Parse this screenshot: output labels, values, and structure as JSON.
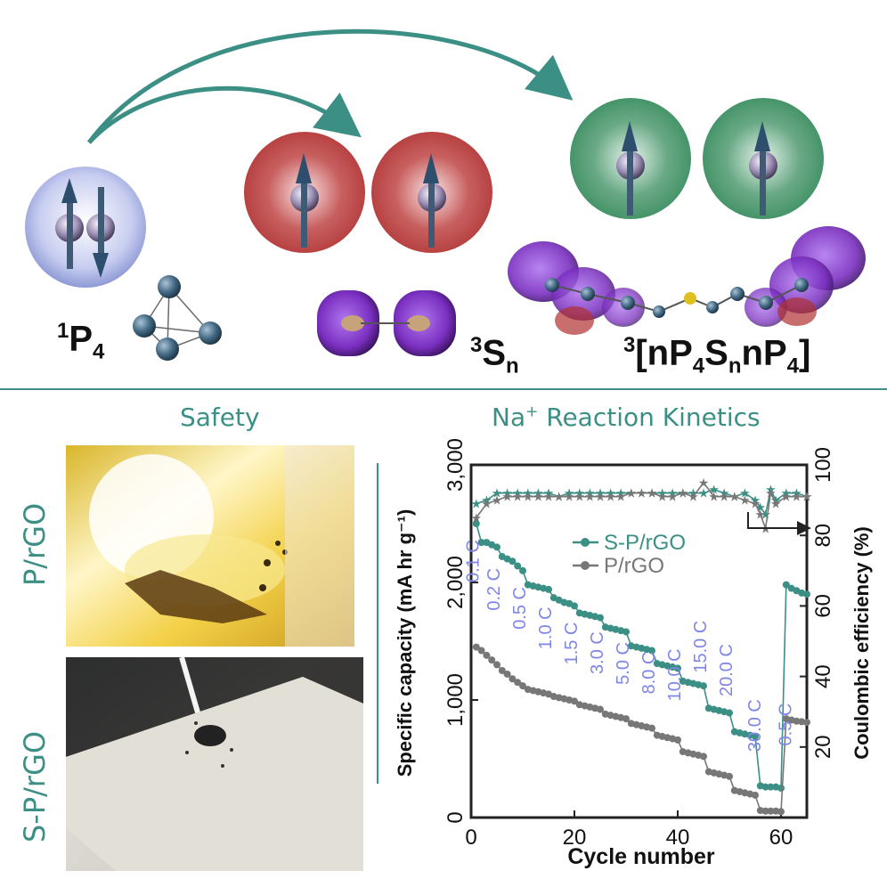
{
  "top": {
    "species_1": {
      "sup": "1",
      "main": "P",
      "sub": "4"
    },
    "species_2": {
      "sup": "3",
      "main": "S",
      "sub": "n"
    },
    "species_3": {
      "sup": "3",
      "pre": "[nP",
      "sub1": "4",
      "mid": "S",
      "sub2": "n",
      "mid2": "nP",
      "sub3": "4",
      "post": "]"
    }
  },
  "sections": {
    "safety": "Safety",
    "kinetics_main": "Na",
    "kinetics_sup": "+",
    "kinetics_rest": " Reaction Kinetics"
  },
  "photos": {
    "top_label": "P/rGO",
    "bottom_label": "S-P/rGO"
  },
  "colors": {
    "teal": "#3b8f84",
    "gray": "#777777",
    "rate_label": "#7f86e6",
    "red_sphere": "#b33a3a",
    "green_sphere": "#3d8f62",
    "blue_sphere": "#8e9ad6",
    "orbital_purple": "#7a2fc0"
  },
  "chart_data": {
    "type": "line",
    "xlabel": "Cycle number",
    "ylabel": "Specific capacity (mA hr g⁻¹)",
    "ylabel_right": "Coulombic efficiency (%)",
    "xlim": [
      0,
      65
    ],
    "ylim": [
      0,
      3000
    ],
    "ylim_right": [
      0,
      100
    ],
    "x_ticks": [
      "0",
      "20",
      "40",
      "60"
    ],
    "y_ticks": [
      "0",
      "1,000",
      "2,000",
      "3,000"
    ],
    "y_ticks_right": [
      "20",
      "40",
      "60",
      "80",
      "100"
    ],
    "legend": [
      "S-P/rGO",
      "P/rGO"
    ],
    "rate_labels": [
      "0.1 C",
      "0.2 C",
      "0.5 C",
      "1.0 C",
      "1.5 C",
      "3.0 C",
      "5.0 C",
      "8.0 C",
      "10.0 C",
      "15.0 C",
      "20.0 C",
      "30.0 C",
      "0.5 C"
    ],
    "series": [
      {
        "name": "S-P/rGO",
        "x": [
          1,
          2,
          3,
          4,
          5,
          6,
          7,
          8,
          9,
          10,
          11,
          12,
          13,
          14,
          15,
          16,
          17,
          18,
          19,
          20,
          21,
          22,
          23,
          24,
          25,
          26,
          27,
          28,
          29,
          30,
          31,
          32,
          33,
          34,
          35,
          36,
          37,
          38,
          39,
          40,
          41,
          42,
          43,
          44,
          45,
          46,
          47,
          48,
          49,
          50,
          51,
          52,
          53,
          54,
          55,
          56,
          57,
          58,
          59,
          60,
          61,
          62,
          63,
          64,
          65
        ],
        "values": [
          2500,
          2340,
          2340,
          2320,
          2300,
          2220,
          2200,
          2180,
          2140,
          2100,
          1980,
          1970,
          1960,
          1950,
          1940,
          1870,
          1850,
          1830,
          1820,
          1800,
          1740,
          1730,
          1720,
          1710,
          1700,
          1620,
          1610,
          1600,
          1590,
          1580,
          1460,
          1450,
          1440,
          1430,
          1420,
          1310,
          1300,
          1290,
          1280,
          1270,
          1160,
          1150,
          1140,
          1130,
          1120,
          930,
          920,
          910,
          900,
          890,
          730,
          720,
          710,
          700,
          690,
          270,
          260,
          260,
          260,
          250,
          1980,
          1950,
          1930,
          1910,
          1900
        ]
      },
      {
        "name": "P/rGO",
        "x": [
          1,
          2,
          3,
          4,
          5,
          6,
          7,
          8,
          9,
          10,
          11,
          12,
          13,
          14,
          15,
          16,
          17,
          18,
          19,
          20,
          21,
          22,
          23,
          24,
          25,
          26,
          27,
          28,
          29,
          30,
          31,
          32,
          33,
          34,
          35,
          36,
          37,
          38,
          39,
          40,
          41,
          42,
          43,
          44,
          45,
          46,
          47,
          48,
          49,
          50,
          51,
          52,
          53,
          54,
          55,
          56,
          57,
          58,
          59,
          60,
          61,
          62,
          63,
          64,
          65
        ],
        "values": [
          1450,
          1420,
          1380,
          1340,
          1300,
          1250,
          1220,
          1180,
          1150,
          1120,
          1090,
          1080,
          1070,
          1060,
          1050,
          1030,
          1020,
          1010,
          1000,
          990,
          960,
          950,
          940,
          930,
          920,
          880,
          870,
          860,
          850,
          840,
          800,
          790,
          780,
          770,
          760,
          700,
          690,
          680,
          670,
          660,
          560,
          550,
          540,
          530,
          520,
          390,
          380,
          370,
          360,
          350,
          230,
          220,
          210,
          200,
          190,
          60,
          55,
          55,
          55,
          50,
          840,
          830,
          820,
          815,
          810
        ]
      },
      {
        "name": "S-P/rGO CE",
        "x": [
          1,
          3,
          5,
          7,
          9,
          11,
          13,
          15,
          17,
          19,
          21,
          23,
          25,
          27,
          29,
          31,
          33,
          35,
          37,
          39,
          41,
          43,
          45,
          47,
          49,
          51,
          53,
          55,
          56,
          57,
          58,
          59,
          61,
          63,
          65
        ],
        "values": [
          89,
          90,
          92,
          92,
          92,
          92,
          92,
          92,
          91,
          92,
          92,
          92,
          92,
          92,
          92,
          92,
          92,
          92,
          92,
          92,
          92,
          92,
          92,
          93,
          92,
          91,
          92,
          90,
          88,
          86,
          93,
          90,
          92,
          92,
          91
        ]
      },
      {
        "name": "P/rGO CE",
        "x": [
          1,
          3,
          5,
          7,
          9,
          11,
          13,
          15,
          17,
          19,
          21,
          23,
          25,
          27,
          29,
          31,
          33,
          35,
          37,
          39,
          41,
          43,
          45,
          47,
          49,
          51,
          53,
          55,
          56,
          57,
          58,
          59,
          61,
          63,
          65
        ],
        "values": [
          85,
          89,
          90,
          91,
          91,
          91,
          91,
          91,
          91,
          91,
          91,
          91,
          91,
          91,
          91,
          92,
          92,
          92,
          91,
          91,
          92,
          91,
          95,
          91,
          91,
          91,
          90,
          89,
          86,
          82,
          92,
          89,
          91,
          91,
          91
        ]
      }
    ]
  }
}
